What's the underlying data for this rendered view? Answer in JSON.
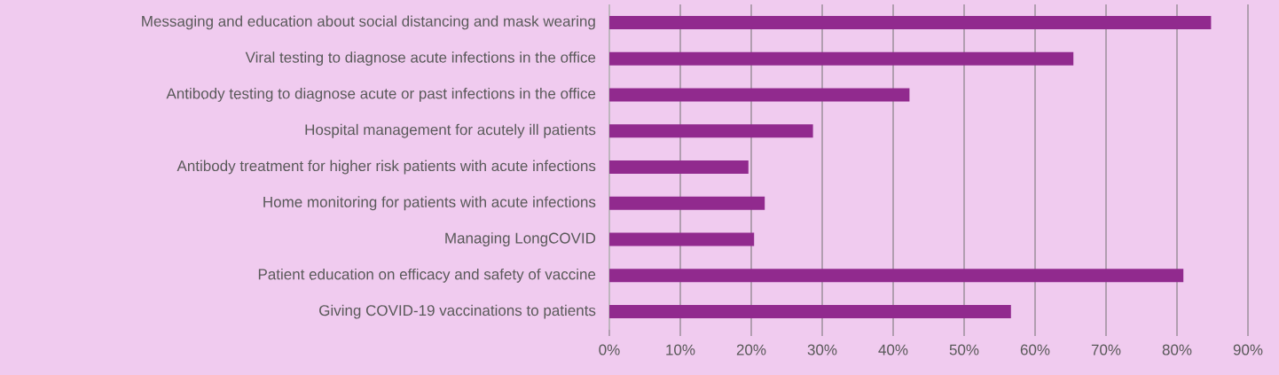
{
  "chart_data": {
    "type": "bar",
    "orientation": "horizontal",
    "color": "#912a8e",
    "grid": "x",
    "categories": [
      "Messaging and education about social distancing and mask wearing",
      "Viral testing to diagnose acute infections in the office",
      "Antibody testing to diagnose acute or past infections in the office",
      "Hospital management for acutely ill patients",
      "Antibody treatment for higher risk patients with acute infections",
      "Home monitoring for patients with acute infections",
      "Managing LongCOVID",
      "Patient education on efficacy and safety of vaccine",
      "Giving COVID-19 vaccinations to patients"
    ],
    "values": [
      84.8,
      65.4,
      42.3,
      28.7,
      19.6,
      21.9,
      20.4,
      80.9,
      56.6
    ],
    "xlim": [
      0,
      90
    ],
    "xticks": [
      {
        "value": 0,
        "label": "0%"
      },
      {
        "value": 10,
        "label": "10%"
      },
      {
        "value": 20,
        "label": "20%"
      },
      {
        "value": 30,
        "label": "30%"
      },
      {
        "value": 40,
        "label": "40%"
      },
      {
        "value": 50,
        "label": "50%"
      },
      {
        "value": 60,
        "label": "60%"
      },
      {
        "value": 70,
        "label": "70%"
      },
      {
        "value": 80,
        "label": "80%"
      },
      {
        "value": 90,
        "label": "90%"
      }
    ]
  }
}
